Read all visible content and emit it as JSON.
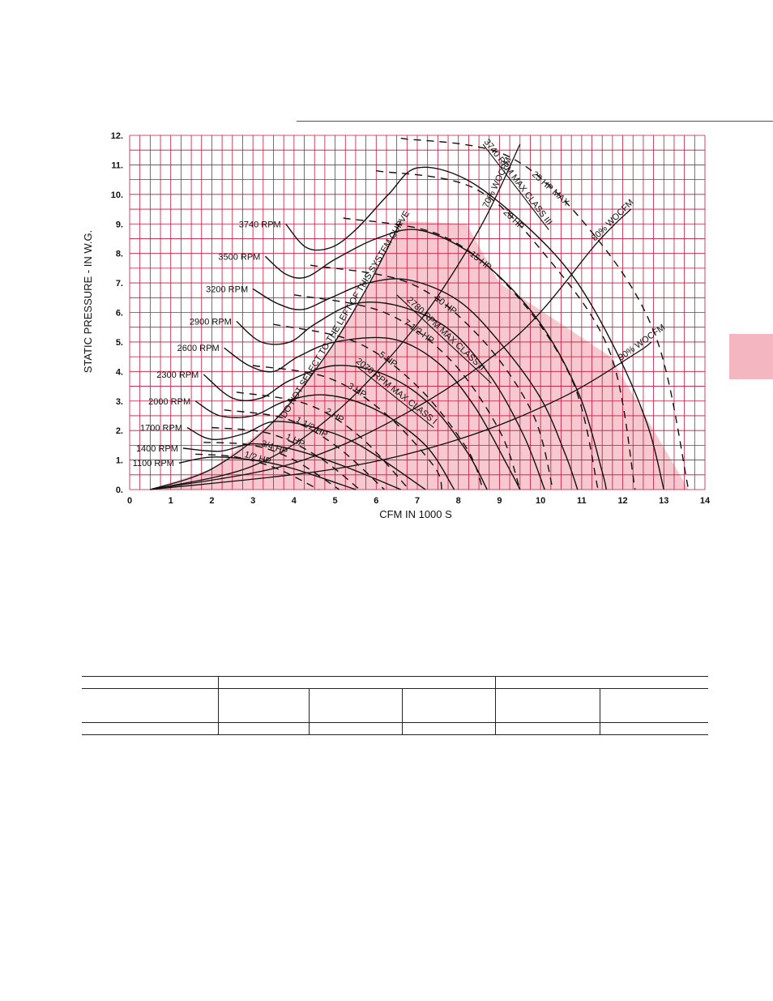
{
  "colors": {
    "grid": "#c4163b",
    "shade": "#f7c8cf",
    "tab": "#f4b6c0",
    "ink": "#111111"
  },
  "chart_data": {
    "type": "line",
    "xlabel": "CFM IN 1000 S",
    "ylabel": "STATIC PRESSURE - IN W.G.",
    "xlim": [
      0,
      14
    ],
    "ylim": [
      0,
      12
    ],
    "x_ticks": [
      "0",
      "1",
      "2",
      "3",
      "4",
      "5",
      "6",
      "7",
      "8",
      "9",
      "10",
      "11",
      "12",
      "13",
      "14"
    ],
    "y_ticks": [
      "0.",
      "1.",
      "2.",
      "3.",
      "4.",
      "5.",
      "6.",
      "7.",
      "8.",
      "9.",
      "10.",
      "11.",
      "12."
    ],
    "grid": true,
    "rpm_curves": [
      {
        "label": "1100 RPM",
        "points": [
          [
            1.2,
            0.9
          ],
          [
            2.0,
            1.1
          ],
          [
            3.0,
            1.0
          ],
          [
            4.0,
            0.7
          ],
          [
            5.5,
            0.0
          ]
        ]
      },
      {
        "label": "1400 RPM",
        "points": [
          [
            1.3,
            1.4
          ],
          [
            2.2,
            1.3
          ],
          [
            3.0,
            1.55
          ],
          [
            4.0,
            1.35
          ],
          [
            5.2,
            0.8
          ],
          [
            6.6,
            0.0
          ]
        ]
      },
      {
        "label": "1700 RPM",
        "points": [
          [
            1.4,
            2.1
          ],
          [
            2.0,
            1.7
          ],
          [
            2.8,
            1.9
          ],
          [
            3.5,
            2.3
          ],
          [
            4.5,
            2.1
          ],
          [
            5.6,
            1.5
          ],
          [
            7.2,
            0.0
          ]
        ]
      },
      {
        "label": "2000 RPM",
        "points": [
          [
            1.6,
            3.0
          ],
          [
            2.2,
            2.5
          ],
          [
            3.0,
            2.5
          ],
          [
            3.8,
            3.0
          ],
          [
            4.8,
            3.2
          ],
          [
            6.0,
            2.7
          ],
          [
            7.2,
            1.5
          ],
          [
            7.9,
            0.0
          ]
        ]
      },
      {
        "label": "2300 RPM",
        "points": [
          [
            1.8,
            3.9
          ],
          [
            2.5,
            3.1
          ],
          [
            3.2,
            3.1
          ],
          [
            3.9,
            3.7
          ],
          [
            5.0,
            4.2
          ],
          [
            6.2,
            3.9
          ],
          [
            7.3,
            2.9
          ],
          [
            8.2,
            1.3
          ],
          [
            8.7,
            0.0
          ]
        ]
      },
      {
        "label": "2600 RPM",
        "points": [
          [
            2.3,
            4.8
          ],
          [
            2.9,
            4.2
          ],
          [
            3.5,
            4.0
          ],
          [
            4.1,
            4.5
          ],
          [
            5.0,
            5.0
          ],
          [
            6.4,
            5.1
          ],
          [
            7.5,
            4.3
          ],
          [
            8.4,
            2.8
          ],
          [
            9.2,
            0.8
          ],
          [
            9.5,
            0.0
          ]
        ]
      },
      {
        "label": "2900 RPM",
        "points": [
          [
            2.6,
            5.7
          ],
          [
            3.2,
            5.0
          ],
          [
            3.9,
            5.0
          ],
          [
            4.5,
            5.6
          ],
          [
            5.5,
            6.3
          ],
          [
            6.6,
            6.2
          ],
          [
            7.8,
            5.4
          ],
          [
            8.8,
            3.8
          ],
          [
            9.6,
            1.8
          ],
          [
            10.1,
            0.0
          ]
        ]
      },
      {
        "label": "3200 RPM",
        "points": [
          [
            3.0,
            6.8
          ],
          [
            3.6,
            6.3
          ],
          [
            4.2,
            6.1
          ],
          [
            4.9,
            6.5
          ],
          [
            5.8,
            7.0
          ],
          [
            6.8,
            7.1
          ],
          [
            8.0,
            6.4
          ],
          [
            9.0,
            5.0
          ],
          [
            10.0,
            3.1
          ],
          [
            10.6,
            1.2
          ],
          [
            10.9,
            0.0
          ]
        ]
      },
      {
        "label": "3500 RPM",
        "points": [
          [
            3.3,
            7.9
          ],
          [
            3.8,
            7.3
          ],
          [
            4.3,
            7.2
          ],
          [
            5.0,
            7.8
          ],
          [
            6.0,
            8.5
          ],
          [
            7.0,
            8.8
          ],
          [
            8.2,
            8.1
          ],
          [
            9.3,
            6.8
          ],
          [
            10.2,
            5.2
          ],
          [
            11.0,
            3.0
          ],
          [
            11.5,
            0.6
          ],
          [
            11.6,
            0.0
          ]
        ]
      },
      {
        "label": "3740 RPM",
        "points": [
          [
            3.8,
            9.0
          ],
          [
            4.3,
            8.2
          ],
          [
            4.9,
            8.2
          ],
          [
            5.5,
            8.8
          ],
          [
            6.3,
            10.0
          ],
          [
            7.0,
            10.9
          ],
          [
            8.2,
            10.5
          ],
          [
            9.6,
            9.0
          ],
          [
            10.8,
            7.2
          ],
          [
            11.8,
            4.8
          ],
          [
            12.6,
            2.2
          ],
          [
            13.0,
            0.0
          ]
        ]
      }
    ],
    "hp_curves": [
      {
        "label": "1/2 HP",
        "points": [
          [
            1.6,
            1.2
          ],
          [
            2.6,
            1.1
          ],
          [
            3.6,
            0.7
          ],
          [
            4.6,
            0.0
          ]
        ]
      },
      {
        "label": "3/4 HP",
        "points": [
          [
            1.8,
            1.6
          ],
          [
            3.0,
            1.5
          ],
          [
            4.0,
            1.0
          ],
          [
            5.1,
            0.0
          ]
        ]
      },
      {
        "label": "1 HP",
        "points": [
          [
            2.0,
            2.1
          ],
          [
            3.4,
            1.9
          ],
          [
            4.6,
            1.1
          ],
          [
            5.6,
            0.0
          ]
        ]
      },
      {
        "label": "1 1/2 HP",
        "points": [
          [
            2.3,
            2.7
          ],
          [
            3.8,
            2.4
          ],
          [
            5.0,
            1.5
          ],
          [
            6.2,
            0.0
          ]
        ]
      },
      {
        "label": "2 HP",
        "points": [
          [
            2.6,
            3.3
          ],
          [
            4.3,
            2.9
          ],
          [
            5.6,
            1.8
          ],
          [
            6.8,
            0.0
          ]
        ]
      },
      {
        "label": "3 HP",
        "points": [
          [
            3.0,
            4.2
          ],
          [
            4.8,
            3.8
          ],
          [
            6.2,
            2.6
          ],
          [
            7.4,
            0.8
          ],
          [
            7.6,
            0.0
          ]
        ]
      },
      {
        "label": "5 HP",
        "points": [
          [
            3.5,
            5.6
          ],
          [
            5.5,
            5.0
          ],
          [
            7.0,
            3.5
          ],
          [
            8.2,
            1.4
          ],
          [
            8.6,
            0.0
          ]
        ]
      },
      {
        "label": "7 1/2 HP",
        "points": [
          [
            4.0,
            6.6
          ],
          [
            6.2,
            6.0
          ],
          [
            7.8,
            4.4
          ],
          [
            9.0,
            2.0
          ],
          [
            9.5,
            0.0
          ]
        ]
      },
      {
        "label": "10 HP",
        "points": [
          [
            4.4,
            7.6
          ],
          [
            6.8,
            7.0
          ],
          [
            8.5,
            5.2
          ],
          [
            9.8,
            2.6
          ],
          [
            10.3,
            0.0
          ]
        ]
      },
      {
        "label": "15 HP",
        "points": [
          [
            5.2,
            9.2
          ],
          [
            7.6,
            8.6
          ],
          [
            9.4,
            6.6
          ],
          [
            10.8,
            3.6
          ],
          [
            11.4,
            0.0
          ]
        ]
      },
      {
        "label": "20 HP",
        "points": [
          [
            6.0,
            10.8
          ],
          [
            8.4,
            10.2
          ],
          [
            10.2,
            7.8
          ],
          [
            11.7,
            4.6
          ],
          [
            12.3,
            0.0
          ]
        ]
      },
      {
        "label": "25 HP MAX",
        "points": [
          [
            6.6,
            11.9
          ],
          [
            9.2,
            11.3
          ],
          [
            11.2,
            8.8
          ],
          [
            12.8,
            5.2
          ],
          [
            13.6,
            0.0
          ]
        ]
      }
    ],
    "efficiency_lines": [
      {
        "label": "70% WOCFM",
        "points": [
          [
            0.5,
            0.0
          ],
          [
            3.0,
            0.8
          ],
          [
            5.0,
            2.6
          ],
          [
            7.0,
            5.6
          ],
          [
            8.5,
            8.8
          ],
          [
            9.5,
            11.7
          ]
        ]
      },
      {
        "label": "80% WOCFM",
        "points": [
          [
            0.5,
            0.0
          ],
          [
            4.0,
            0.9
          ],
          [
            7.0,
            2.8
          ],
          [
            9.5,
            5.3
          ],
          [
            11.4,
            8.4
          ],
          [
            12.2,
            9.5
          ]
        ]
      },
      {
        "label": "90% WOCFM",
        "points": [
          [
            0.5,
            0.0
          ],
          [
            5.0,
            0.7
          ],
          [
            8.0,
            1.7
          ],
          [
            10.5,
            3.1
          ],
          [
            12.3,
            4.6
          ],
          [
            12.7,
            5.0
          ]
        ]
      }
    ],
    "system_curve": {
      "label": "DO NOT SELECT TO THE LEFT OF THIS SYSTEM CURVE",
      "points": [
        [
          0.5,
          0.0
        ],
        [
          2.0,
          0.7
        ],
        [
          3.5,
          2.3
        ],
        [
          4.8,
          4.6
        ],
        [
          5.8,
          6.9
        ],
        [
          6.6,
          9.1
        ]
      ]
    },
    "class_lines": [
      {
        "label": "2070 RPM MAX CLASS I",
        "points": [
          [
            5.5,
            4.2
          ],
          [
            7.4,
            2.1
          ]
        ]
      },
      {
        "label": "2780 RPM MAX CLASS II",
        "points": [
          [
            6.5,
            6.6
          ],
          [
            8.8,
            3.6
          ]
        ]
      },
      {
        "label": "3740 RPM MAX CLASS III",
        "points": [
          [
            8.6,
            11.7
          ],
          [
            10.2,
            8.8
          ]
        ]
      }
    ],
    "unshaded_regions": [
      {
        "points": [
          [
            9.0,
            7.0
          ],
          [
            11.7,
            4.5
          ],
          [
            13.6,
            0.0
          ]
        ]
      }
    ]
  },
  "table": {
    "rows": [
      [
        "",
        "",
        "",
        "",
        "",
        ""
      ],
      [
        "",
        "",
        "",
        "",
        "",
        ""
      ],
      [
        "",
        "",
        "",
        "",
        "",
        ""
      ]
    ]
  }
}
